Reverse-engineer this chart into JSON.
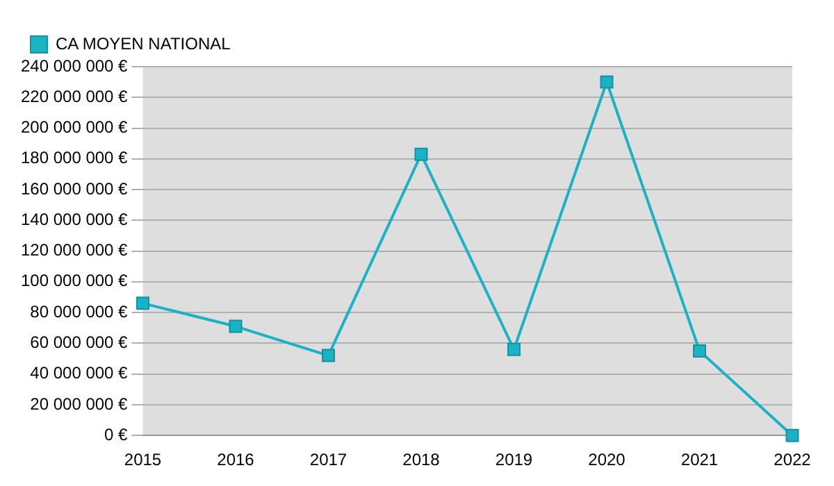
{
  "chart_data": {
    "type": "line",
    "categories": [
      "2015",
      "2016",
      "2017",
      "2018",
      "2019",
      "2020",
      "2021",
      "2022"
    ],
    "series": [
      {
        "name": "CA MOYEN NATIONAL",
        "color": "#1ab3c6",
        "values": [
          86000000,
          71000000,
          52000000,
          183000000,
          56000000,
          230000000,
          55000000,
          0
        ]
      }
    ],
    "ylim": [
      0,
      240000000
    ],
    "yticks": [
      {
        "value": 0,
        "label": "0 €"
      },
      {
        "value": 20000000,
        "label": "20 000 000 €"
      },
      {
        "value": 40000000,
        "label": "40 000 000 €"
      },
      {
        "value": 60000000,
        "label": "60 000 000 €"
      },
      {
        "value": 80000000,
        "label": "80 000 000 €"
      },
      {
        "value": 100000000,
        "label": "100 000 000 €"
      },
      {
        "value": 120000000,
        "label": "120 000 000 €"
      },
      {
        "value": 140000000,
        "label": "140 000 000 €"
      },
      {
        "value": 160000000,
        "label": "160 000 000 €"
      },
      {
        "value": 180000000,
        "label": "180 000 000 €"
      },
      {
        "value": 200000000,
        "label": "200 000 000 €"
      },
      {
        "value": 220000000,
        "label": "220 000 000 €"
      },
      {
        "value": 240000000,
        "label": "240 000 000 €"
      }
    ],
    "grid": "y",
    "legend": "top left",
    "marker": "square",
    "line_style": "solid"
  }
}
